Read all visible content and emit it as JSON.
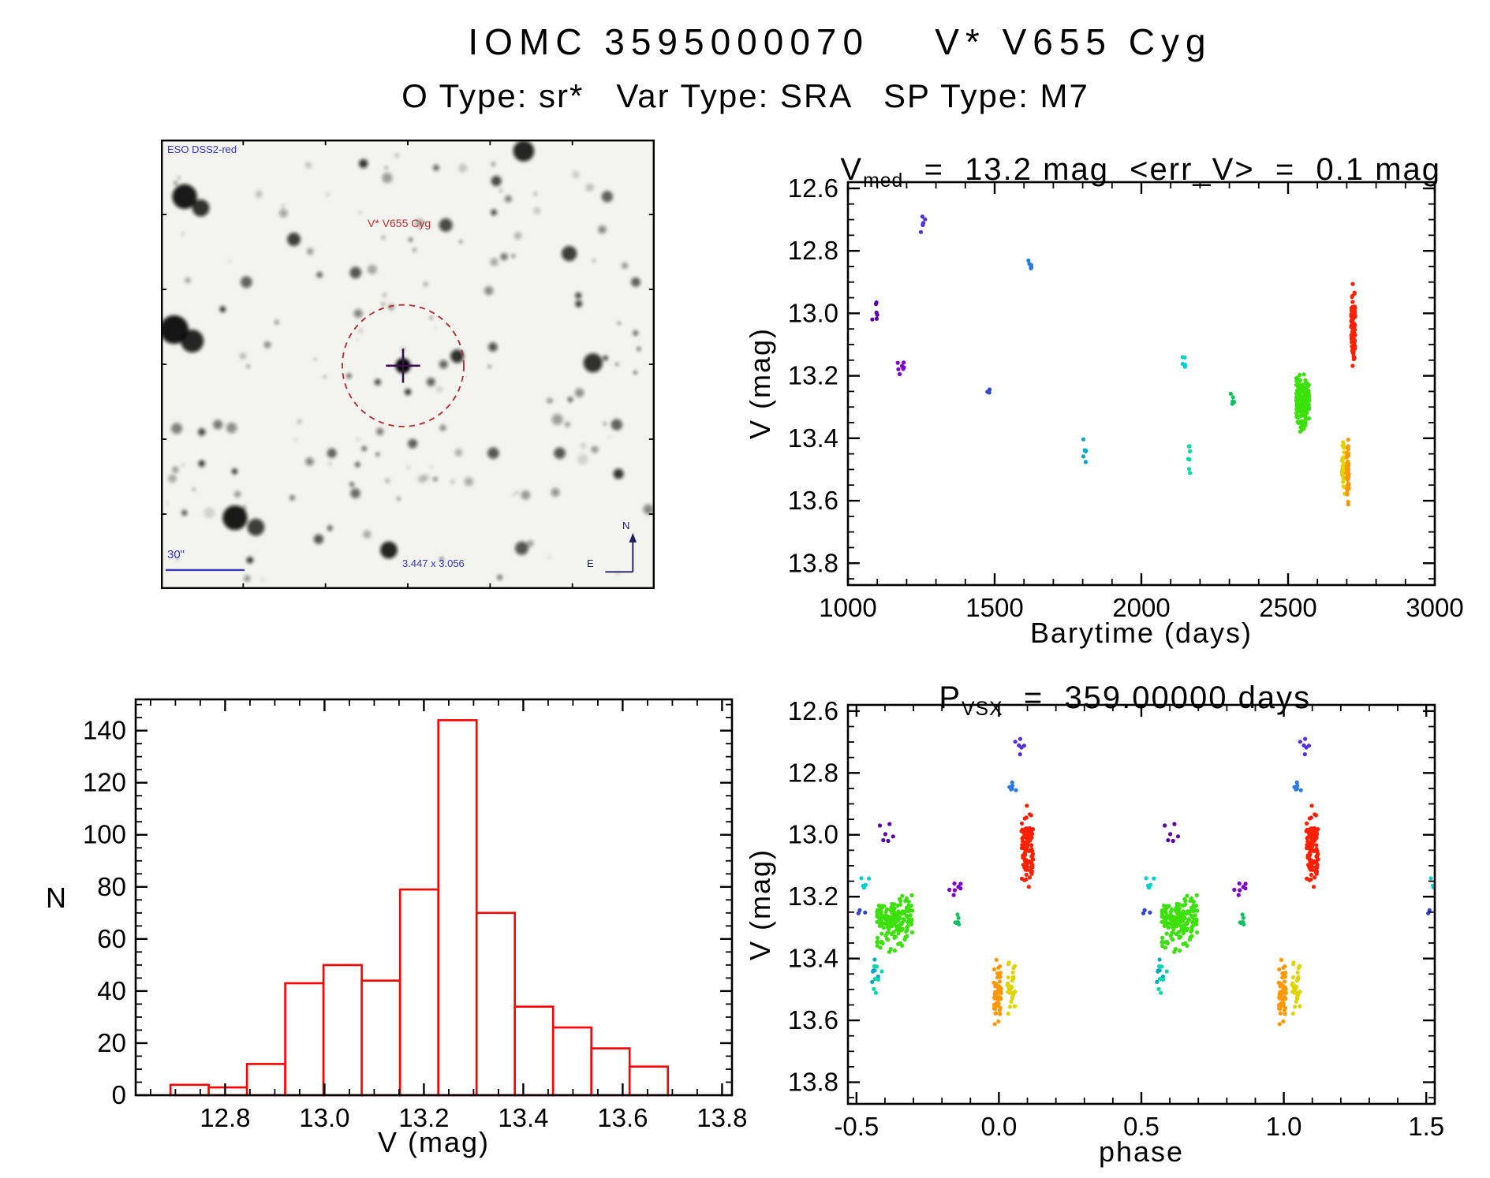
{
  "header": {
    "title": "IOMC 3595000070    V* V655 Cyg",
    "subtitle": "O Type: sr*   Var Type: SRA   SP Type: M7"
  },
  "finder": {
    "survey": "ESO DSS2-red",
    "star": "V* V655 Cyg",
    "scale": "30\"",
    "size": "3.447 x 3.056",
    "north": "N",
    "east": "E"
  },
  "chart_data": [
    {
      "id": "lightcurve",
      "type": "scatter",
      "title": {
        "prefix": "V",
        "sub": "med",
        "rest": "  =  13.2 mag  <err_V>  =  0.1 mag"
      },
      "xlabel": "Barytime (days)",
      "ylabel": "V (mag)",
      "xlim": [
        1000,
        3000
      ],
      "ylim": [
        12.58,
        13.87
      ],
      "y_increases_downward": true,
      "xticks": [
        1000,
        1500,
        2000,
        2500,
        3000
      ],
      "xtick_labels": [
        "1000",
        "1500",
        "2000",
        "2500",
        "3000"
      ],
      "xminor": 100,
      "yticks": [
        12.6,
        12.8,
        13.0,
        13.2,
        13.4,
        13.6,
        13.8
      ],
      "ytick_labels": [
        "12.6",
        "12.8",
        "13.0",
        "13.2",
        "13.4",
        "13.6",
        "13.8"
      ],
      "yminor": 0.05,
      "clusters": [
        {
          "t": 1090,
          "tspread": 20,
          "phase": 0.6,
          "v": 13.0,
          "vspread": 0.045,
          "n": 6,
          "color": "#5b00a5"
        },
        {
          "t": 1180,
          "tspread": 22,
          "phase": 0.84,
          "v": 13.17,
          "vspread": 0.035,
          "n": 7,
          "color": "#7a00c8"
        },
        {
          "t": 1255,
          "tspread": 16,
          "phase": 0.065,
          "v": 12.71,
          "vspread": 0.022,
          "n": 6,
          "color": "#5530d8"
        },
        {
          "t": 1480,
          "tspread": 10,
          "phase": 0.52,
          "v": 13.25,
          "vspread": 0.008,
          "n": 3,
          "color": "#3347cc"
        },
        {
          "t": 1620,
          "tspread": 14,
          "phase": 0.055,
          "v": 12.845,
          "vspread": 0.022,
          "n": 6,
          "color": "#2a7ae0"
        },
        {
          "t": 1805,
          "tspread": 12,
          "phase": 0.565,
          "v": 13.43,
          "vspread": 0.035,
          "n": 6,
          "color": "#00a8c8"
        },
        {
          "t": 2145,
          "tspread": 12,
          "phase": 0.53,
          "v": 13.155,
          "vspread": 0.02,
          "n": 5,
          "color": "#00cfd0"
        },
        {
          "t": 2160,
          "tspread": 12,
          "phase": 0.575,
          "v": 13.46,
          "vspread": 0.045,
          "n": 7,
          "color": "#00d8a8"
        },
        {
          "t": 2310,
          "tspread": 14,
          "phase": 0.86,
          "v": 13.275,
          "vspread": 0.025,
          "n": 6,
          "color": "#10c060"
        },
        {
          "t": 2550,
          "tspread": 45,
          "phase": 0.635,
          "v": 13.28,
          "vspread": 0.065,
          "n": 170,
          "color": "#3ce00a"
        },
        {
          "t": 2688,
          "tspread": 10,
          "phase": 0.045,
          "v": 13.49,
          "vspread": 0.075,
          "n": 32,
          "color": "#e0d400"
        },
        {
          "t": 2703,
          "tspread": 9,
          "phase": 0.995,
          "v": 13.5,
          "vspread": 0.082,
          "n": 55,
          "color": "#ff9800"
        },
        {
          "t": 2722,
          "tspread": 14,
          "phase": 0.1,
          "v": 13.03,
          "vspread": 0.082,
          "n": 110,
          "color": "#ff2000"
        }
      ]
    },
    {
      "id": "histogram",
      "type": "bar",
      "xlabel": "V (mag)",
      "ylabel": "N",
      "xlim": [
        12.62,
        13.82
      ],
      "ylim": [
        0,
        152
      ],
      "xticks": [
        12.8,
        13.0,
        13.2,
        13.4,
        13.6,
        13.8
      ],
      "xtick_labels": [
        "12.8",
        "13.0",
        "13.2",
        "13.4",
        "13.6",
        "13.8"
      ],
      "xminor": 0.05,
      "yticks": [
        0,
        20,
        40,
        60,
        80,
        100,
        120,
        140
      ],
      "ytick_labels": [
        "0",
        "20",
        "40",
        "60",
        "80",
        "100",
        "120",
        "140"
      ],
      "yminor": 5,
      "bin_start": 12.69,
      "bin_width": 0.077,
      "values": [
        4,
        3,
        12,
        43,
        50,
        44,
        79,
        144,
        70,
        34,
        26,
        18,
        11
      ],
      "bar_color": "#ff0000"
    },
    {
      "id": "phasecurve",
      "type": "scatter",
      "title": {
        "prefix": "P",
        "sub": "VSX",
        "rest": "  =  359.00000 days"
      },
      "xlabel": "phase",
      "ylabel": "V (mag)",
      "xlim": [
        -0.53,
        1.53
      ],
      "ylim": [
        12.58,
        13.87
      ],
      "y_increases_downward": true,
      "period_days": 359.0,
      "xticks": [
        -0.5,
        0.0,
        0.5,
        1.0,
        1.5
      ],
      "xtick_labels": [
        "-0.5",
        "0.0",
        "0.5",
        "1.0",
        "1.5"
      ],
      "xminor": 0.1,
      "yticks": [
        12.6,
        12.8,
        13.0,
        13.2,
        13.4,
        13.6,
        13.8
      ],
      "ytick_labels": [
        "12.6",
        "12.8",
        "13.0",
        "13.2",
        "13.4",
        "13.6",
        "13.8"
      ],
      "yminor": 0.05,
      "uses_clusters_from": "lightcurve"
    }
  ]
}
